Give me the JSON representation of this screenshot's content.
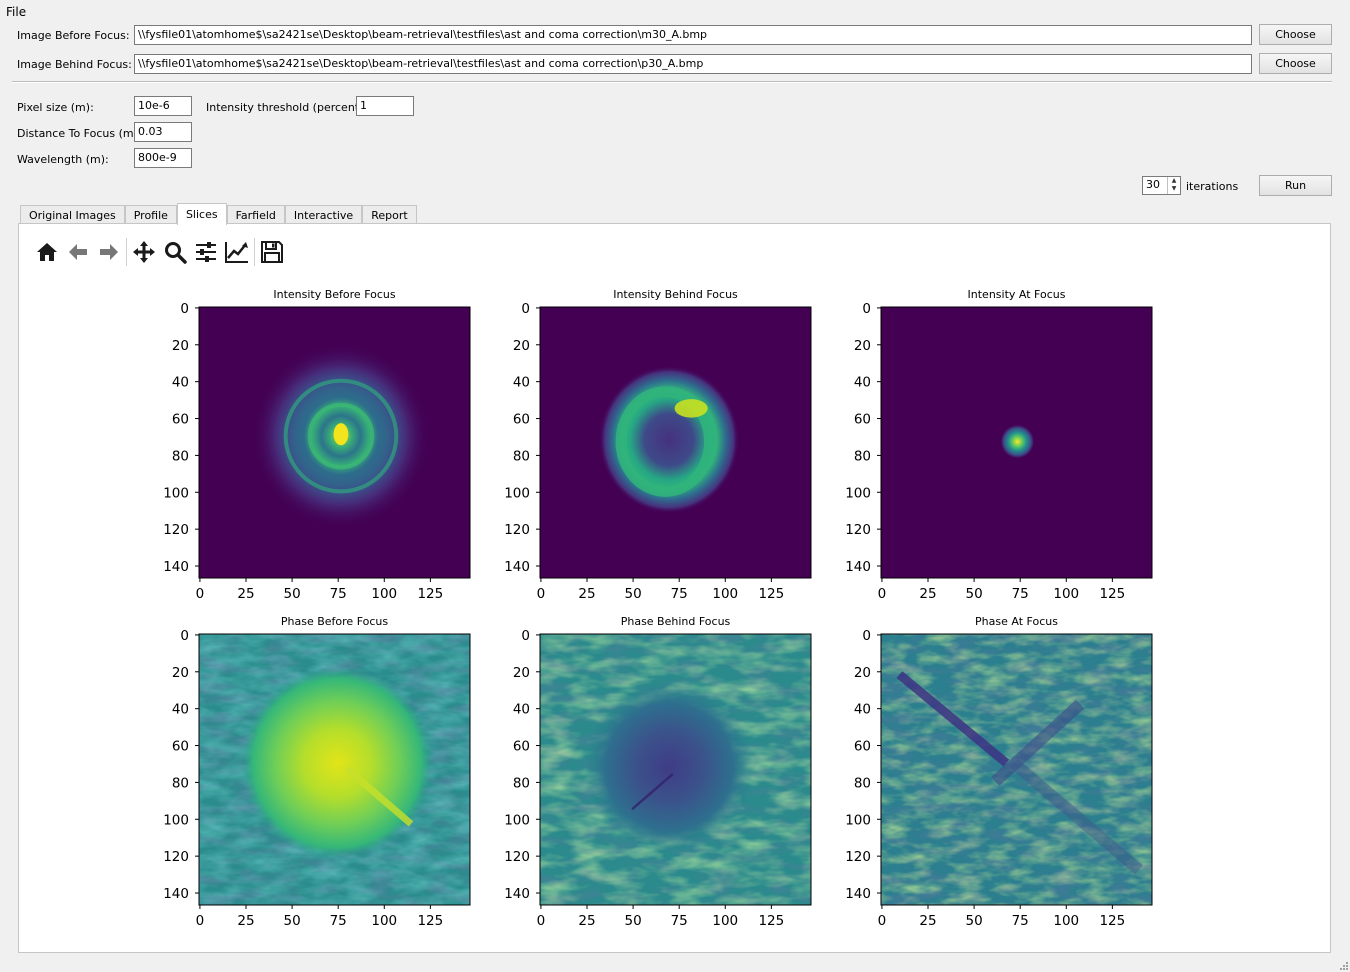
{
  "menubar": {
    "file": "File"
  },
  "form": {
    "before_label": "Image Before Focus:",
    "before_path": "\\\\fysfile01\\atomhome$\\sa2421se\\Desktop\\beam-retrieval\\testfiles\\ast and coma correction\\m30_A.bmp",
    "behind_label": "Image Behind Focus:",
    "behind_path": "\\\\fysfile01\\atomhome$\\sa2421se\\Desktop\\beam-retrieval\\testfiles\\ast and coma correction\\p30_A.bmp",
    "choose_label": "Choose",
    "pixel_size_label": "Pixel size (m):",
    "pixel_size": "10e-6",
    "threshold_label": "Intensity threshold (percent):",
    "threshold": "1",
    "distance_label": "Distance To Focus (m):",
    "distance": "0.03",
    "wavelength_label": "Wavelength (m):",
    "wavelength": "800e-9",
    "iterations": "30",
    "iterations_label": "iterations",
    "run_label": "Run"
  },
  "tabs": [
    "Original Images",
    "Profile",
    "Slices",
    "Farfield",
    "Interactive",
    "Report"
  ],
  "active_tab": "Slices",
  "toolbar": [
    "home-icon",
    "back-arrow-icon",
    "forward-arrow-icon",
    "pan-icon",
    "zoom-icon",
    "configure-subplots-icon",
    "edit-axes-icon",
    "save-icon"
  ],
  "colormap": "viridis",
  "chart_data": [
    {
      "type": "heatmap",
      "title": "Intensity Before Focus",
      "xticks": [
        0,
        25,
        50,
        75,
        100,
        125
      ],
      "yticks": [
        0,
        20,
        40,
        60,
        80,
        100,
        120,
        140
      ],
      "xlim": [
        0,
        147
      ],
      "ylim": [
        147,
        0
      ],
      "feature": "concentric rings centered near x=77, y=70 with bright core"
    },
    {
      "type": "heatmap",
      "title": "Intensity Behind Focus",
      "xticks": [
        0,
        25,
        50,
        75,
        100,
        125
      ],
      "yticks": [
        0,
        20,
        40,
        60,
        80,
        100,
        120,
        140
      ],
      "xlim": [
        0,
        147
      ],
      "ylim": [
        147,
        0
      ],
      "feature": "bright ring centered near x=70, y=72, brightest at upper right"
    },
    {
      "type": "heatmap",
      "title": "Intensity At Focus",
      "xticks": [
        0,
        25,
        50,
        75,
        100,
        125
      ],
      "yticks": [
        0,
        20,
        40,
        60,
        80,
        100,
        120,
        140
      ],
      "xlim": [
        0,
        147
      ],
      "ylim": [
        147,
        0
      ],
      "feature": "small focal spot near x=74, y=73"
    },
    {
      "type": "heatmap",
      "title": "Phase Before Focus",
      "xticks": [
        0,
        25,
        50,
        75,
        100,
        125
      ],
      "yticks": [
        0,
        20,
        40,
        60,
        80,
        100,
        120,
        140
      ],
      "xlim": [
        0,
        147
      ],
      "ylim": [
        147,
        0
      ],
      "feature": "bright radial phase centered near x=75, y=70 over diagonal noise"
    },
    {
      "type": "heatmap",
      "title": "Phase Behind Focus",
      "xticks": [
        0,
        25,
        50,
        75,
        100,
        125
      ],
      "yticks": [
        0,
        20,
        40,
        60,
        80,
        100,
        120,
        140
      ],
      "xlim": [
        0,
        147
      ],
      "ylim": [
        147,
        0
      ],
      "feature": "dark radial phase centered near x=70, y=72 over diagonal noise"
    },
    {
      "type": "heatmap",
      "title": "Phase At Focus",
      "xticks": [
        0,
        25,
        50,
        75,
        100,
        125
      ],
      "yticks": [
        0,
        20,
        40,
        60,
        80,
        100,
        120,
        140
      ],
      "xlim": [
        0,
        147
      ],
      "ylim": [
        147,
        0
      ],
      "feature": "diagonal X pattern with dark band from upper left"
    }
  ]
}
